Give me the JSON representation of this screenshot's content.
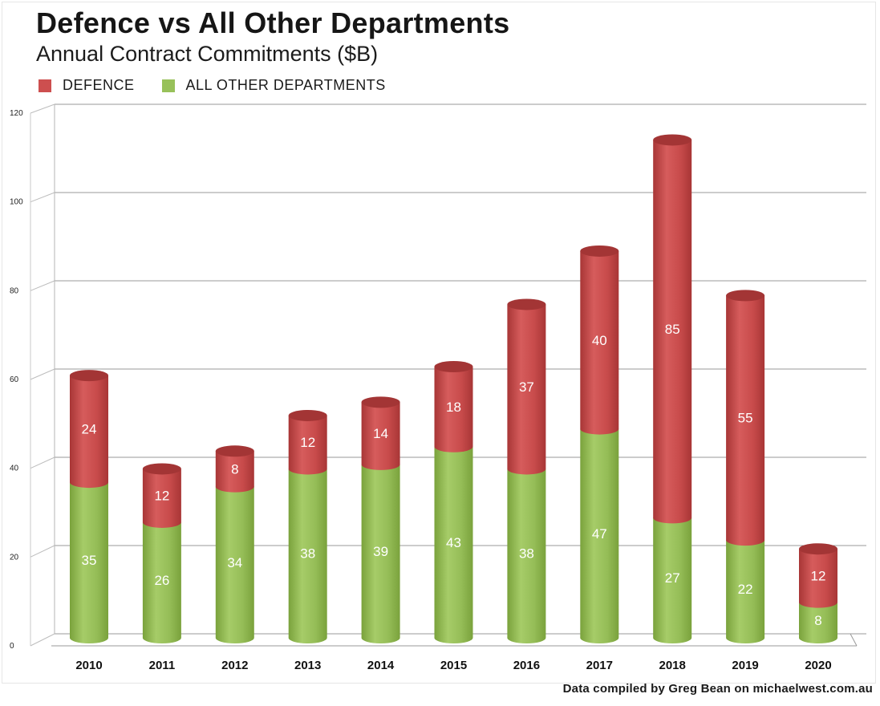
{
  "chart_data": {
    "type": "bar",
    "stacked": true,
    "title": "Defence vs All Other Departments",
    "subtitle": "Annual Contract Commitments ($B)",
    "categories": [
      "2010",
      "2011",
      "2012",
      "2013",
      "2014",
      "2015",
      "2016",
      "2017",
      "2018",
      "2019",
      "2020"
    ],
    "series": [
      {
        "name": "ALL OTHER DEPARTMENTS",
        "color": "#98c15a",
        "values": [
          35,
          26,
          34,
          38,
          39,
          43,
          38,
          47,
          27,
          22,
          8
        ]
      },
      {
        "name": "DEFENCE",
        "color": "#cd4f4f",
        "values": [
          24,
          12,
          8,
          12,
          14,
          18,
          37,
          40,
          85,
          55,
          12
        ]
      }
    ],
    "legend_order": [
      "DEFENCE",
      "ALL OTHER DEPARTMENTS"
    ],
    "legend_position": "top-left",
    "ylim": [
      0,
      120
    ],
    "yticks": [
      "0",
      "20",
      "40",
      "60",
      "80",
      "100",
      "120"
    ],
    "grid": true,
    "xlabel": "",
    "ylabel": ""
  },
  "source_note": "Data compiled by Greg Bean on michaelwest.com.au"
}
